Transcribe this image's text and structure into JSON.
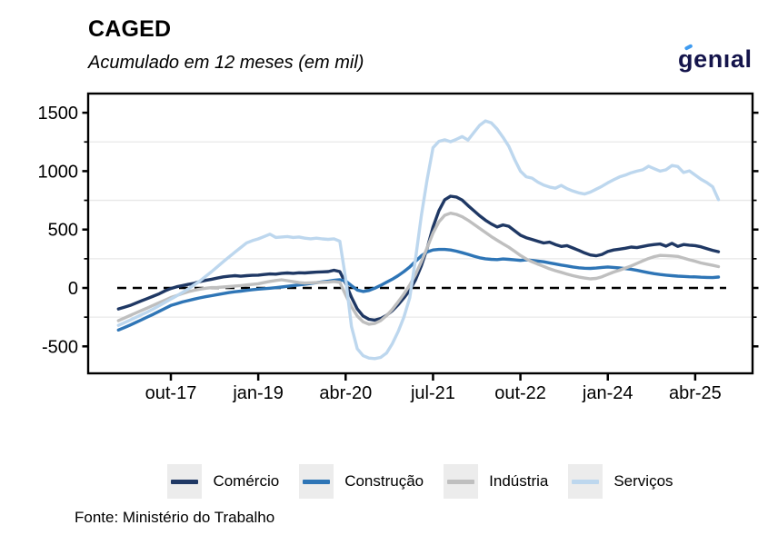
{
  "header": {
    "title": "CAGED",
    "subtitle": "Acumulado em 12 meses (em mil)"
  },
  "logo": {
    "text": "genıal",
    "color": "#14144b",
    "accent_color": "#3f9bf0"
  },
  "footer": {
    "source": "Fonte: Ministério do Trabalho"
  },
  "chart_data": {
    "type": "line",
    "title": "CAGED",
    "subtitle": "Acumulado em 12 meses (em mil)",
    "unit": "thousands (em mil), 12-month accumulated",
    "x_start_month": "jan-17",
    "x_end_month": "ago-25",
    "x_tick_labels": [
      "out-17",
      "jan-19",
      "abr-20",
      "jul-21",
      "out-22",
      "jan-24",
      "abr-25"
    ],
    "x_tick_month_index": [
      9,
      24,
      39,
      54,
      69,
      84,
      99
    ],
    "ylim": [
      -732,
      1665
    ],
    "yticks_major": [
      -500,
      0,
      500,
      1000,
      1500
    ],
    "yticks_minor": [
      -250,
      250,
      750,
      1250
    ],
    "zero_line": {
      "style": "dashed",
      "color": "#000000",
      "value": 0
    },
    "grid": "minor-horizontal-only",
    "grid_color": "#e8e8e8",
    "legend_position": "bottom",
    "series": [
      {
        "name": "Comércio",
        "color": "#1f3864",
        "values": [
          -180,
          -165,
          -150,
          -130,
          -110,
          -90,
          -70,
          -50,
          -25,
          -5,
          10,
          20,
          30,
          40,
          55,
          65,
          75,
          85,
          95,
          100,
          105,
          100,
          105,
          108,
          110,
          115,
          120,
          118,
          125,
          128,
          125,
          130,
          128,
          132,
          135,
          138,
          140,
          152,
          140,
          40,
          -80,
          -180,
          -240,
          -268,
          -275,
          -262,
          -235,
          -195,
          -145,
          -85,
          -20,
          70,
          190,
          340,
          520,
          660,
          755,
          785,
          778,
          752,
          705,
          662,
          618,
          580,
          548,
          522,
          540,
          528,
          490,
          452,
          430,
          415,
          400,
          385,
          392,
          372,
          355,
          362,
          342,
          322,
          300,
          282,
          275,
          287,
          312,
          325,
          332,
          340,
          350,
          345,
          355,
          365,
          372,
          376,
          358,
          382,
          356,
          372,
          366,
          362,
          352,
          337,
          322,
          310
        ]
      },
      {
        "name": "Construção",
        "color": "#2e75b6",
        "values": [
          -360,
          -340,
          -318,
          -295,
          -272,
          -248,
          -225,
          -200,
          -175,
          -150,
          -135,
          -120,
          -108,
          -96,
          -85,
          -75,
          -66,
          -57,
          -48,
          -40,
          -33,
          -27,
          -21,
          -15,
          -10,
          -6,
          -2,
          2,
          8,
          14,
          20,
          26,
          32,
          38,
          45,
          52,
          58,
          65,
          70,
          60,
          20,
          -18,
          -30,
          -22,
          -2,
          22,
          48,
          75,
          105,
          140,
          180,
          228,
          275,
          308,
          325,
          330,
          330,
          325,
          315,
          302,
          288,
          272,
          258,
          250,
          245,
          243,
          248,
          245,
          240,
          236,
          240,
          236,
          230,
          224,
          215,
          205,
          196,
          188,
          180,
          173,
          169,
          167,
          170,
          176,
          180,
          176,
          171,
          166,
          160,
          151,
          141,
          131,
          122,
          115,
          110,
          105,
          101,
          99,
          96,
          95,
          92,
          90,
          89,
          93
        ]
      },
      {
        "name": "Indústria",
        "color": "#bfbfbf",
        "values": [
          -280,
          -258,
          -236,
          -214,
          -192,
          -170,
          -148,
          -126,
          -104,
          -82,
          -65,
          -48,
          -32,
          -20,
          -10,
          -2,
          3,
          5,
          8,
          12,
          16,
          20,
          26,
          30,
          36,
          46,
          56,
          64,
          70,
          62,
          54,
          46,
          42,
          44,
          46,
          48,
          50,
          55,
          48,
          -60,
          -160,
          -240,
          -290,
          -310,
          -304,
          -280,
          -238,
          -184,
          -120,
          -52,
          25,
          115,
          225,
          345,
          470,
          565,
          622,
          640,
          630,
          610,
          580,
          545,
          510,
          475,
          440,
          408,
          378,
          348,
          314,
          278,
          248,
          224,
          204,
          184,
          164,
          148,
          134,
          119,
          105,
          94,
          85,
          78,
          82,
          96,
          116,
          136,
          152,
          170,
          188,
          210,
          232,
          252,
          268,
          278,
          277,
          274,
          270,
          256,
          241,
          229,
          214,
          204,
          194,
          183
        ]
      },
      {
        "name": "Serviços",
        "color": "#bdd7ee",
        "values": [
          -320,
          -298,
          -275,
          -252,
          -228,
          -205,
          -180,
          -152,
          -124,
          -95,
          -68,
          -38,
          -8,
          26,
          60,
          100,
          140,
          182,
          225,
          266,
          306,
          346,
          386,
          405,
          420,
          440,
          460,
          432,
          436,
          440,
          432,
          436,
          426,
          421,
          426,
          420,
          416,
          421,
          400,
          80,
          -330,
          -520,
          -580,
          -600,
          -605,
          -595,
          -558,
          -478,
          -375,
          -250,
          -85,
          250,
          620,
          930,
          1200,
          1255,
          1268,
          1252,
          1272,
          1296,
          1266,
          1330,
          1392,
          1430,
          1414,
          1360,
          1290,
          1212,
          1100,
          1000,
          952,
          940,
          906,
          880,
          864,
          854,
          878,
          850,
          830,
          814,
          804,
          820,
          845,
          870,
          900,
          926,
          950,
          966,
          986,
          1000,
          1012,
          1042,
          1020,
          1000,
          1012,
          1048,
          1040,
          988,
          1002,
          966,
          930,
          902,
          866,
          756
        ]
      }
    ]
  }
}
